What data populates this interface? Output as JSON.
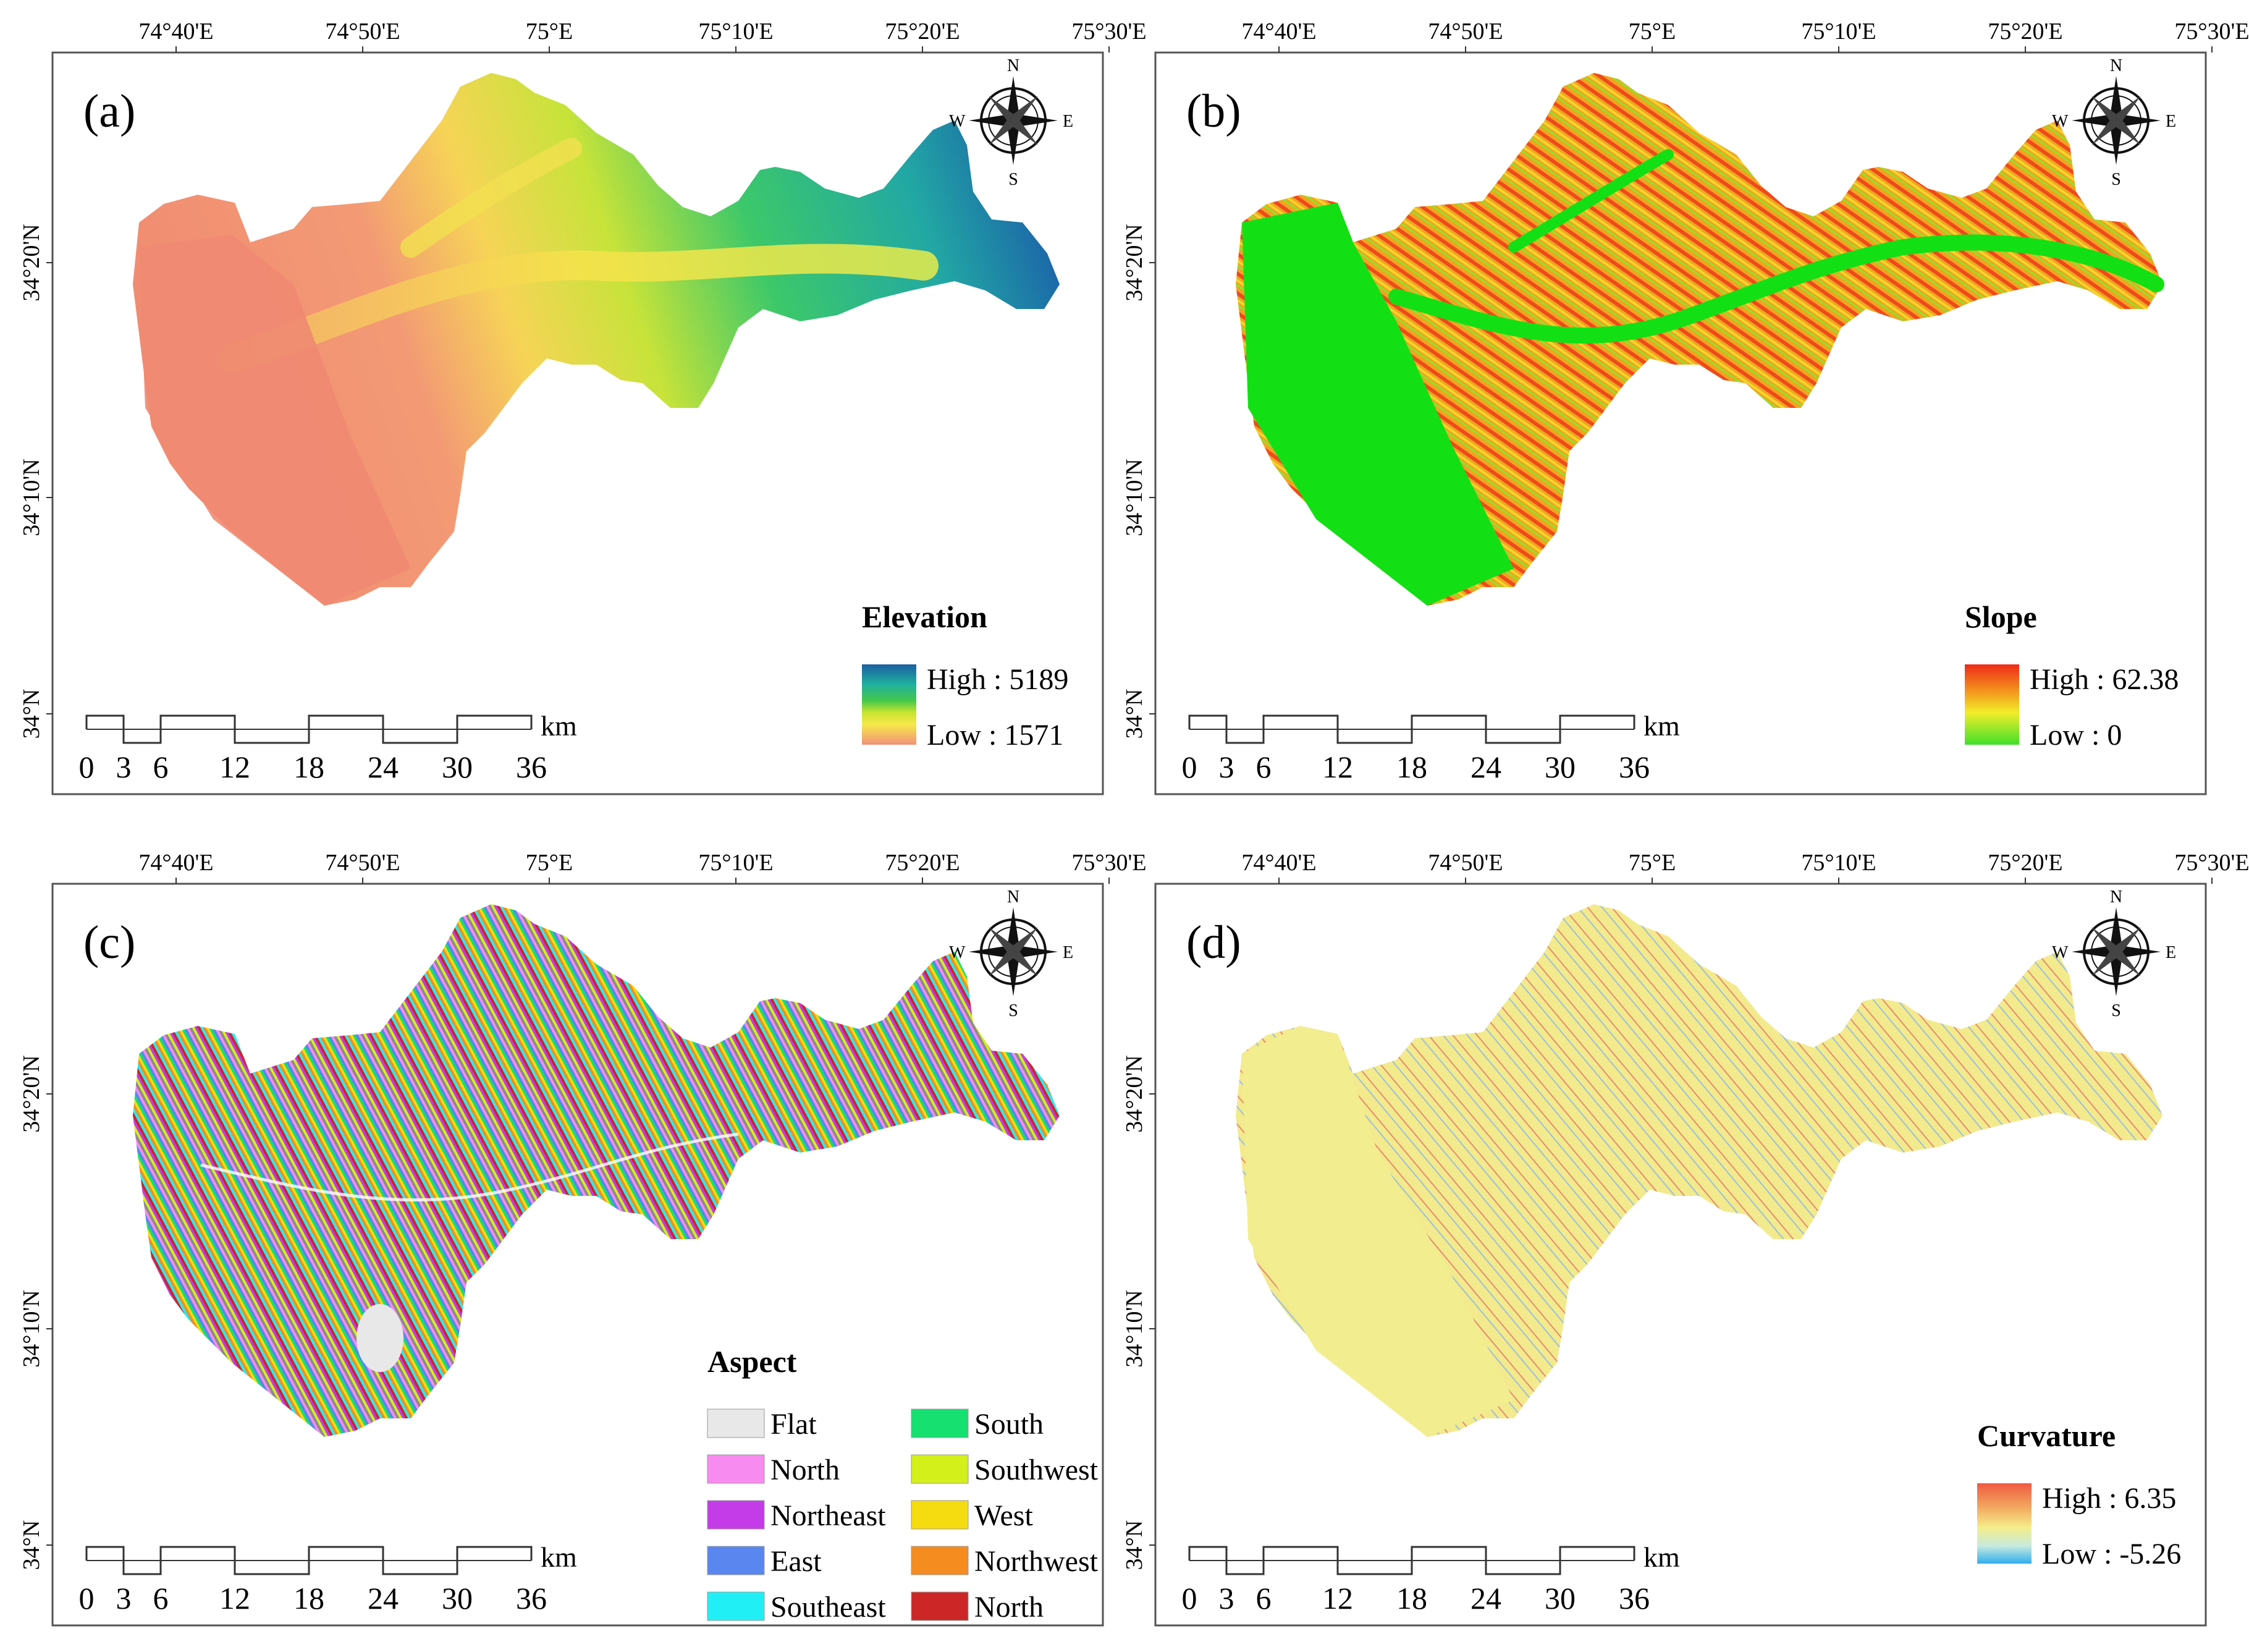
{
  "figure": {
    "lon_ticks": [
      "74°40'E",
      "74°50'E",
      "75°E",
      "75°10'E",
      "75°20'E",
      "75°30'E"
    ],
    "lat_ticks": [
      "34°20'N",
      "34°10'N",
      "34°N"
    ],
    "scalebar": {
      "unit": "km",
      "ticks": [
        "0",
        "3",
        "6",
        "12",
        "18",
        "24",
        "30",
        "36"
      ]
    },
    "compass": {
      "n": "N",
      "e": "E",
      "s": "S",
      "w": "W"
    }
  },
  "panels": [
    {
      "id": "a",
      "label": "(a)",
      "layer": "elevation",
      "legend": {
        "title": "Elevation",
        "high": "High : 5189",
        "low": "Low : 1571",
        "ramp": [
          "#1a5fa0",
          "#1fa8a0",
          "#31c24a",
          "#b8e02a",
          "#f5e84a",
          "#f7b060",
          "#f08870"
        ]
      }
    },
    {
      "id": "b",
      "label": "(b)",
      "layer": "slope",
      "legend": {
        "title": "Slope",
        "high": "High : 62.38",
        "low": "Low : 0",
        "ramp": [
          "#ee2a1a",
          "#f49a1c",
          "#f2ee2a",
          "#3fe02a"
        ]
      }
    },
    {
      "id": "c",
      "label": "(c)",
      "layer": "aspect",
      "legend": {
        "title": "Aspect",
        "classes": [
          {
            "name": "Flat",
            "color": "#e8e8e8"
          },
          {
            "name": "North",
            "color": "#f78bf0"
          },
          {
            "name": "Northeast",
            "color": "#c43be8"
          },
          {
            "name": "East",
            "color": "#5a86f0"
          },
          {
            "name": "Southeast",
            "color": "#20f0f5"
          },
          {
            "name": "South",
            "color": "#16e070"
          },
          {
            "name": "Southwest",
            "color": "#d4f01a"
          },
          {
            "name": "West",
            "color": "#f5dc10"
          },
          {
            "name": "Northwest",
            "color": "#f58c20"
          },
          {
            "name": "North",
            "color": "#cc2626"
          }
        ]
      }
    },
    {
      "id": "d",
      "label": "(d)",
      "layer": "curvature",
      "legend": {
        "title": "Curvature",
        "high": "High : 6.35",
        "low": "Low : -5.26",
        "ramp": [
          "#f05a40",
          "#f2a860",
          "#f5ee8a",
          "#bde8d8",
          "#30aef0"
        ]
      }
    }
  ]
}
